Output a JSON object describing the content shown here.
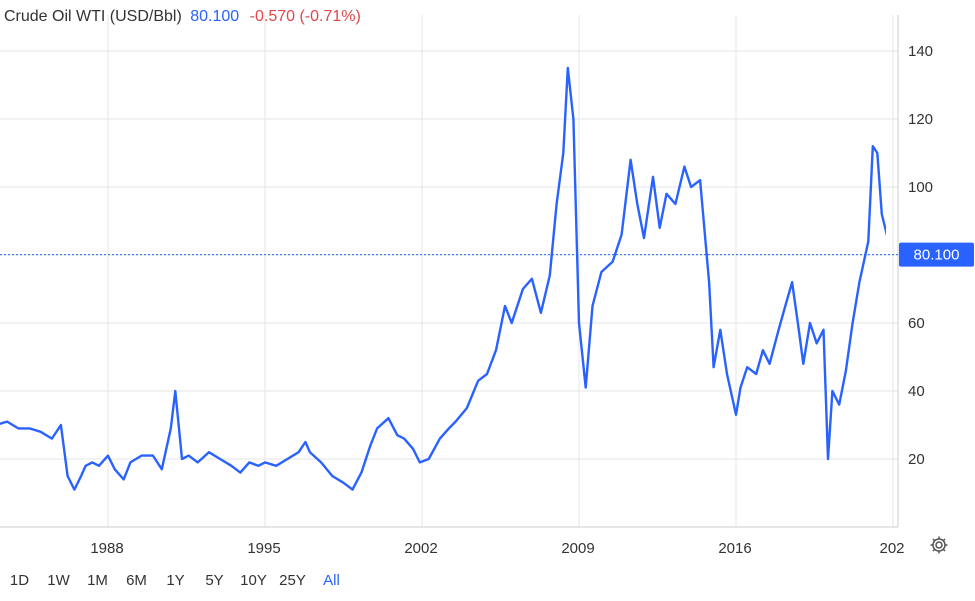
{
  "header": {
    "title": "Crude Oil WTI (USD/Bbl)",
    "last": "80.100",
    "change": "-0.570 (-0.71%)"
  },
  "ranges": [
    "1D",
    "1W",
    "1M",
    "6M",
    "1Y",
    "5Y",
    "10Y",
    "25Y",
    "All"
  ],
  "active_range": "All",
  "settings_icon": "gear-icon",
  "colors": {
    "line": "#2962ff",
    "negative": "#e0474c",
    "grid": "#e6e6e6"
  },
  "chart_data": {
    "type": "line",
    "title": "Crude Oil WTI (USD/Bbl)",
    "x_tick_labels": [
      "1988",
      "1995",
      "2002",
      "2009",
      "2016",
      "202"
    ],
    "y_ticks": [
      20,
      40,
      60,
      80,
      100,
      120,
      140
    ],
    "ylim": [
      0,
      150
    ],
    "xlim": [
      1983,
      2022.4
    ],
    "last_value_label": "80.100",
    "grid": true,
    "series": [
      {
        "x": [
          1983.0,
          1983.5,
          1984.0,
          1984.5,
          1985.0,
          1985.5,
          1985.9,
          1986.2,
          1986.5,
          1986.8,
          1987.0,
          1987.3,
          1987.6,
          1988.0,
          1988.3,
          1988.7,
          1989.0,
          1989.5,
          1990.0,
          1990.4,
          1990.8,
          1991.0,
          1991.3,
          1991.6,
          1992.0,
          1992.5,
          1993.0,
          1993.5,
          1993.9,
          1994.3,
          1994.7,
          1995.0,
          1995.5,
          1996.0,
          1996.5,
          1996.8,
          1997.0,
          1997.5,
          1998.0,
          1998.5,
          1998.9,
          1999.3,
          1999.7,
          2000.0,
          2000.5,
          2000.9,
          2001.2,
          2001.6,
          2001.9,
          2002.3,
          2002.8,
          2003.2,
          2003.5,
          2004.0,
          2004.5,
          2004.9,
          2005.3,
          2005.7,
          2006.0,
          2006.5,
          2006.9,
          2007.3,
          2007.7,
          2008.0,
          2008.3,
          2008.5,
          2008.75,
          2009.0,
          2009.3,
          2009.6,
          2010.0,
          2010.5,
          2010.9,
          2011.3,
          2011.6,
          2011.9,
          2012.3,
          2012.6,
          2012.9,
          2013.3,
          2013.7,
          2014.0,
          2014.4,
          2014.8,
          2015.0,
          2015.3,
          2015.6,
          2016.0,
          2016.2,
          2016.5,
          2016.9,
          2017.2,
          2017.5,
          2017.9,
          2018.2,
          2018.5,
          2018.8,
          2019.0,
          2019.3,
          2019.6,
          2019.9,
          2020.1,
          2020.3,
          2020.6,
          2020.9,
          2021.2,
          2021.5,
          2021.9,
          2022.1,
          2022.3,
          2022.5,
          2022.8,
          2023.0,
          2023.3,
          2023.6
        ],
        "values": [
          30,
          31,
          29,
          29,
          28,
          26,
          30,
          15,
          11,
          15,
          18,
          19,
          18,
          21,
          17,
          14,
          19,
          21,
          21,
          17,
          29,
          40,
          20,
          21,
          19,
          22,
          20,
          18,
          16,
          19,
          18,
          19,
          18,
          20,
          22,
          25,
          22,
          19,
          15,
          13,
          11,
          16,
          24,
          29,
          32,
          27,
          26,
          23,
          19,
          20,
          26,
          29,
          31,
          35,
          43,
          45,
          52,
          65,
          60,
          70,
          73,
          63,
          74,
          95,
          110,
          135,
          120,
          60,
          41,
          65,
          75,
          78,
          86,
          108,
          95,
          85,
          103,
          88,
          98,
          95,
          106,
          100,
          102,
          72,
          47,
          58,
          45,
          33,
          41,
          47,
          45,
          52,
          48,
          58,
          65,
          72,
          58,
          48,
          60,
          54,
          58,
          20,
          40,
          36,
          46,
          60,
          72,
          84,
          112,
          110,
          92,
          84,
          80,
          85,
          80
        ],
        "smooth": true
      }
    ]
  }
}
